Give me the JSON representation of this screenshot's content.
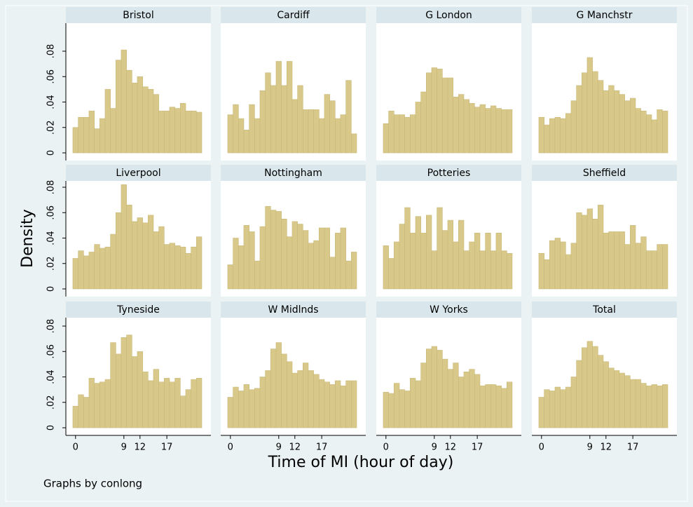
{
  "chart_data": {
    "type": "histogram",
    "y_label": "Density",
    "x_label": "Time of MI (hour of day)",
    "note": "Graphs by conlong",
    "color": "#d8c98a",
    "bins": [
      -0.5,
      0.5,
      1.5,
      2.5,
      3.5,
      4.5,
      5.5,
      6.5,
      7.5,
      8.5,
      9.5,
      10.5,
      11.5,
      12.5,
      13.5,
      14.5,
      15.5,
      16.5,
      17.5,
      18.5,
      19.5,
      20.5,
      21.5,
      22.5,
      23.5
    ],
    "xlim": [
      -1.8,
      25.2
    ],
    "xticks": [
      0,
      9,
      12,
      17
    ],
    "ylim": [
      -0.006,
      0.085
    ],
    "yticks": [
      0,
      {
        "value": 0.02,
        "label": ".02"
      },
      {
        "value": 0.04,
        "label": ".04"
      },
      {
        "value": 0.06,
        "label": ".06"
      },
      {
        "value": 0.08,
        "label": ".08"
      }
    ],
    "panels": [
      {
        "title": "Bristol",
        "values": [
          0.02,
          0.028,
          0.028,
          0.033,
          0.019,
          0.027,
          0.05,
          0.035,
          0.073,
          0.081,
          0.065,
          0.055,
          0.06,
          0.052,
          0.05,
          0.046,
          0.033,
          0.033,
          0.036,
          0.035,
          0.039,
          0.033,
          0.033,
          0.032
        ]
      },
      {
        "title": "Cardiff",
        "values": [
          0.03,
          0.038,
          0.027,
          0.018,
          0.038,
          0.027,
          0.049,
          0.063,
          0.053,
          0.072,
          0.053,
          0.072,
          0.042,
          0.053,
          0.034,
          0.034,
          0.034,
          0.027,
          0.046,
          0.041,
          0.027,
          0.03,
          0.057,
          0.015
        ]
      },
      {
        "title": "G London",
        "values": [
          0.023,
          0.033,
          0.03,
          0.03,
          0.028,
          0.03,
          0.04,
          0.048,
          0.063,
          0.067,
          0.066,
          0.059,
          0.059,
          0.044,
          0.046,
          0.042,
          0.039,
          0.036,
          0.038,
          0.035,
          0.037,
          0.035,
          0.034,
          0.034
        ]
      },
      {
        "title": "G Manchstr",
        "values": [
          0.028,
          0.022,
          0.027,
          0.028,
          0.027,
          0.031,
          0.041,
          0.053,
          0.063,
          0.075,
          0.064,
          0.057,
          0.049,
          0.053,
          0.049,
          0.046,
          0.041,
          0.043,
          0.035,
          0.033,
          0.03,
          0.026,
          0.034,
          0.033
        ]
      },
      {
        "title": "Liverpool",
        "values": [
          0.024,
          0.03,
          0.026,
          0.029,
          0.035,
          0.032,
          0.033,
          0.043,
          0.06,
          0.082,
          0.066,
          0.053,
          0.056,
          0.052,
          0.058,
          0.045,
          0.049,
          0.035,
          0.036,
          0.034,
          0.033,
          0.028,
          0.033,
          0.041
        ]
      },
      {
        "title": "Nottingham",
        "values": [
          0.019,
          0.04,
          0.034,
          0.05,
          0.045,
          0.022,
          0.049,
          0.065,
          0.062,
          0.061,
          0.055,
          0.041,
          0.053,
          0.051,
          0.046,
          0.036,
          0.038,
          0.048,
          0.048,
          0.025,
          0.044,
          0.048,
          0.022,
          0.029
        ]
      },
      {
        "title": "Potteries",
        "values": [
          0.034,
          0.024,
          0.037,
          0.051,
          0.064,
          0.044,
          0.057,
          0.044,
          0.058,
          0.03,
          0.064,
          0.046,
          0.054,
          0.037,
          0.054,
          0.03,
          0.037,
          0.044,
          0.03,
          0.044,
          0.03,
          0.044,
          0.03,
          0.028
        ]
      },
      {
        "title": "Sheffield",
        "values": [
          0.028,
          0.023,
          0.038,
          0.04,
          0.037,
          0.027,
          0.036,
          0.06,
          0.058,
          0.063,
          0.055,
          0.066,
          0.044,
          0.045,
          0.045,
          0.045,
          0.035,
          0.05,
          0.036,
          0.041,
          0.03,
          0.03,
          0.035,
          0.035
        ]
      },
      {
        "title": "Tyneside",
        "values": [
          0.017,
          0.026,
          0.024,
          0.039,
          0.035,
          0.036,
          0.038,
          0.067,
          0.058,
          0.071,
          0.073,
          0.056,
          0.06,
          0.044,
          0.037,
          0.046,
          0.036,
          0.039,
          0.036,
          0.039,
          0.025,
          0.03,
          0.038,
          0.039
        ]
      },
      {
        "title": "W Midlnds",
        "values": [
          0.024,
          0.032,
          0.029,
          0.034,
          0.03,
          0.031,
          0.04,
          0.045,
          0.062,
          0.067,
          0.058,
          0.052,
          0.043,
          0.045,
          0.051,
          0.045,
          0.042,
          0.038,
          0.036,
          0.034,
          0.037,
          0.033,
          0.037,
          0.037
        ]
      },
      {
        "title": "W Yorks",
        "values": [
          0.028,
          0.027,
          0.035,
          0.03,
          0.029,
          0.039,
          0.037,
          0.051,
          0.062,
          0.064,
          0.061,
          0.054,
          0.046,
          0.051,
          0.04,
          0.044,
          0.046,
          0.042,
          0.033,
          0.034,
          0.034,
          0.033,
          0.031,
          0.036
        ]
      },
      {
        "title": "Total",
        "values": [
          0.024,
          0.03,
          0.029,
          0.032,
          0.03,
          0.032,
          0.04,
          0.053,
          0.063,
          0.068,
          0.064,
          0.057,
          0.052,
          0.047,
          0.045,
          0.043,
          0.041,
          0.038,
          0.038,
          0.035,
          0.033,
          0.034,
          0.033,
          0.034
        ]
      }
    ]
  }
}
